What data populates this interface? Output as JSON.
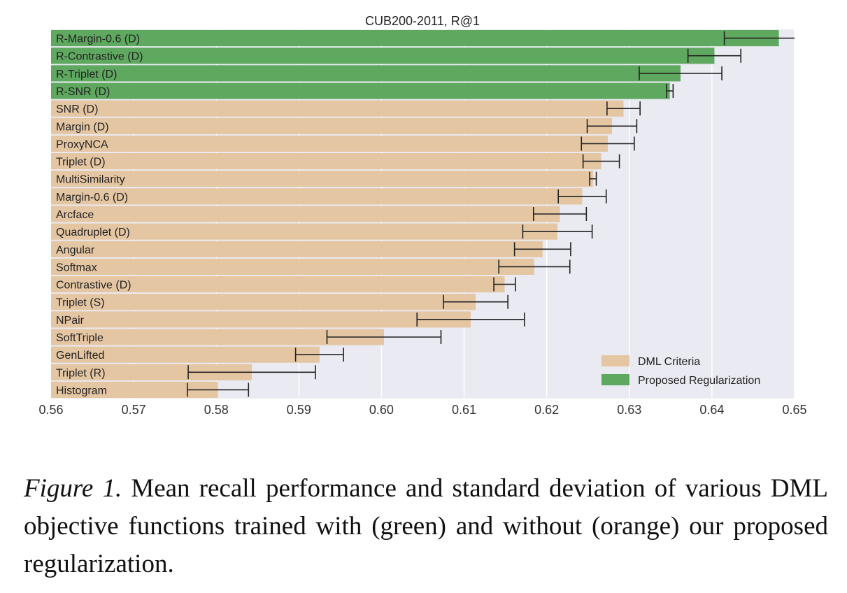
{
  "chart_data": {
    "type": "bar",
    "orientation": "horizontal",
    "title": "CUB200-2011, R@1",
    "xlim": [
      0.56,
      0.65
    ],
    "xticks": [
      "0.56",
      "0.57",
      "0.58",
      "0.59",
      "0.60",
      "0.61",
      "0.62",
      "0.63",
      "0.64",
      "0.65"
    ],
    "grid": true,
    "legend_position": "bottom-right",
    "legend": [
      {
        "label": "DML Criteria",
        "color": "#e5c6a3"
      },
      {
        "label": "Proposed Regularization",
        "color": "#5fa85f"
      }
    ],
    "bars": [
      {
        "label": "R-Margin-0.6 (D)",
        "value": 0.6481,
        "std": 0.0066,
        "group": "Proposed Regularization"
      },
      {
        "label": "R-Contrastive (D)",
        "value": 0.6403,
        "std": 0.0032,
        "group": "Proposed Regularization"
      },
      {
        "label": "R-Triplet (D)",
        "value": 0.6362,
        "std": 0.005,
        "group": "Proposed Regularization"
      },
      {
        "label": "R-SNR (D)",
        "value": 0.6349,
        "std": 0.0004,
        "group": "Proposed Regularization"
      },
      {
        "label": "SNR (D)",
        "value": 0.6293,
        "std": 0.002,
        "group": "DML Criteria"
      },
      {
        "label": "Margin (D)",
        "value": 0.6279,
        "std": 0.003,
        "group": "DML Criteria"
      },
      {
        "label": "ProxyNCA",
        "value": 0.6274,
        "std": 0.0032,
        "group": "DML Criteria"
      },
      {
        "label": "Triplet (D)",
        "value": 0.6266,
        "std": 0.0022,
        "group": "DML Criteria"
      },
      {
        "label": "MultiSimilarity",
        "value": 0.6256,
        "std": 0.0004,
        "group": "DML Criteria"
      },
      {
        "label": "Margin-0.6 (D)",
        "value": 0.6243,
        "std": 0.0029,
        "group": "DML Criteria"
      },
      {
        "label": "Arcface",
        "value": 0.6216,
        "std": 0.0032,
        "group": "DML Criteria"
      },
      {
        "label": "Quadruplet (D)",
        "value": 0.6213,
        "std": 0.0042,
        "group": "DML Criteria"
      },
      {
        "label": "Angular",
        "value": 0.6195,
        "std": 0.0034,
        "group": "DML Criteria"
      },
      {
        "label": "Softmax",
        "value": 0.6185,
        "std": 0.0043,
        "group": "DML Criteria"
      },
      {
        "label": "Contrastive (D)",
        "value": 0.6149,
        "std": 0.0013,
        "group": "DML Criteria"
      },
      {
        "label": "Triplet (S)",
        "value": 0.6114,
        "std": 0.0039,
        "group": "DML Criteria"
      },
      {
        "label": "NPair",
        "value": 0.6108,
        "std": 0.0065,
        "group": "DML Criteria"
      },
      {
        "label": "SoftTriple",
        "value": 0.6003,
        "std": 0.0069,
        "group": "DML Criteria"
      },
      {
        "label": "GenLifted",
        "value": 0.5925,
        "std": 0.0029,
        "group": "DML Criteria"
      },
      {
        "label": "Triplet (R)",
        "value": 0.5843,
        "std": 0.0077,
        "group": "DML Criteria"
      },
      {
        "label": "Histogram",
        "value": 0.5802,
        "std": 0.0037,
        "group": "DML Criteria"
      }
    ]
  },
  "caption": {
    "label": "Figure 1.",
    "text": " Mean recall performance and standard deviation of various DML objective functions trained with (green) and without (orange) our proposed regularization."
  }
}
